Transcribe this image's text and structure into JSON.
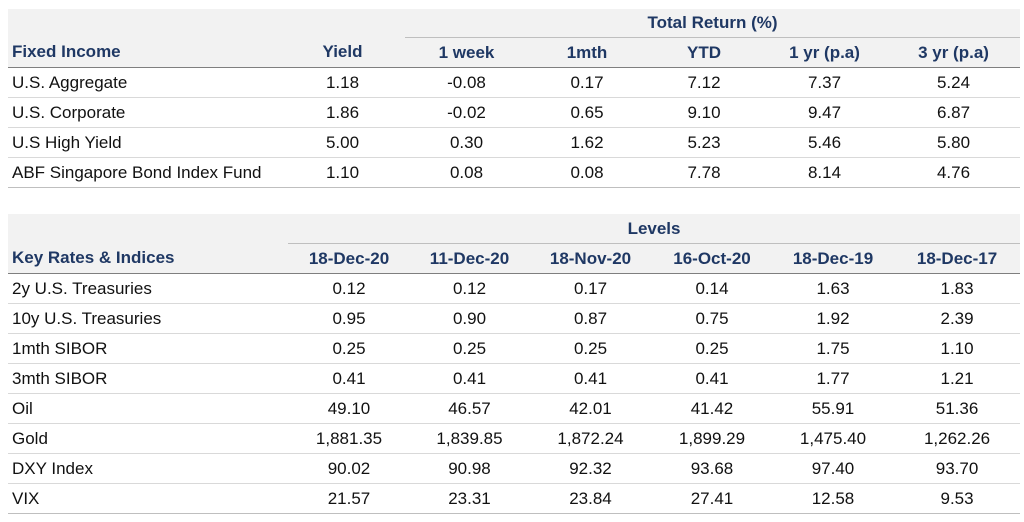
{
  "fixed_income": {
    "group_title": "Total Return (%)",
    "header": [
      "Fixed Income",
      "Yield",
      "1 week",
      "1mth",
      "YTD",
      "1 yr (p.a)",
      "3 yr (p.a)"
    ],
    "rows": [
      [
        "U.S. Aggregate",
        "1.18",
        "-0.08",
        "0.17",
        "7.12",
        "7.37",
        "5.24"
      ],
      [
        "U.S. Corporate",
        "1.86",
        "-0.02",
        "0.65",
        "9.10",
        "9.47",
        "6.87"
      ],
      [
        "U.S High Yield",
        "5.00",
        "0.30",
        "1.62",
        "5.23",
        "5.46",
        "5.80"
      ],
      [
        "ABF Singapore Bond Index Fund",
        "1.10",
        "0.08",
        "0.08",
        "7.78",
        "8.14",
        "4.76"
      ]
    ]
  },
  "key_rates": {
    "group_title": "Levels",
    "header": [
      "Key Rates & Indices",
      "18-Dec-20",
      "11-Dec-20",
      "18-Nov-20",
      "16-Oct-20",
      "18-Dec-19",
      "18-Dec-17"
    ],
    "rows": [
      [
        "2y U.S. Treasuries",
        "0.12",
        "0.12",
        "0.17",
        "0.14",
        "1.63",
        "1.83"
      ],
      [
        "10y U.S. Treasuries",
        "0.95",
        "0.90",
        "0.87",
        "0.75",
        "1.92",
        "2.39"
      ],
      [
        "1mth SIBOR",
        "0.25",
        "0.25",
        "0.25",
        "0.25",
        "1.75",
        "1.10"
      ],
      [
        "3mth SIBOR",
        "0.41",
        "0.41",
        "0.41",
        "0.41",
        "1.77",
        "1.21"
      ],
      [
        "Oil",
        "49.10",
        "46.57",
        "42.01",
        "41.42",
        "55.91",
        "51.36"
      ],
      [
        "Gold",
        "1,881.35",
        "1,839.85",
        "1,872.24",
        "1,899.29",
        "1,475.40",
        "1,262.26"
      ],
      [
        "DXY Index",
        "90.02",
        "90.98",
        "92.32",
        "93.68",
        "97.40",
        "93.70"
      ],
      [
        "VIX",
        "21.57",
        "23.31",
        "23.84",
        "27.41",
        "12.58",
        "9.53"
      ]
    ]
  },
  "colors": {
    "header_text": "#1f3864",
    "band": "#f2f2f2",
    "rule": "#bfbfbf"
  }
}
